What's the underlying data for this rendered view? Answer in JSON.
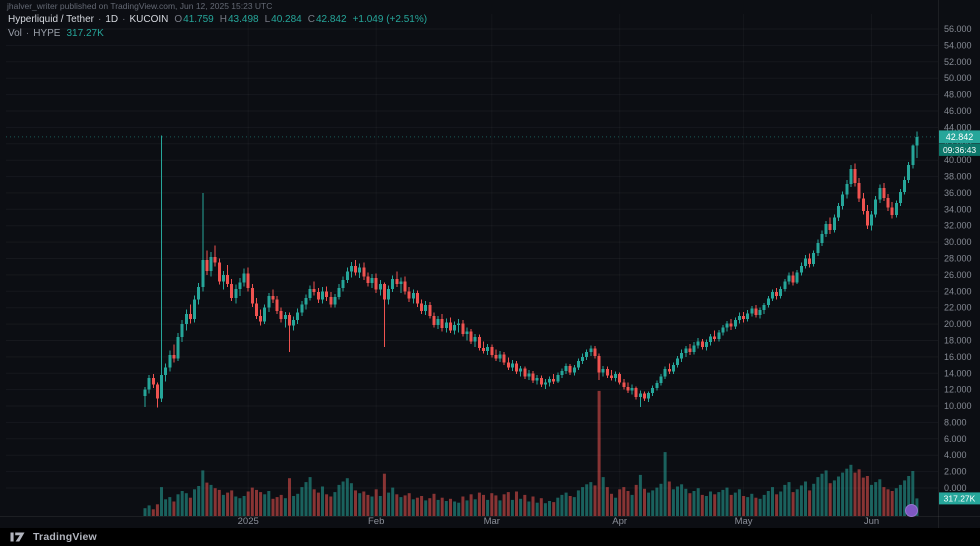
{
  "attribution": "jhalver_writer published on TradingView.com, Jun 12, 2025 15:23 UTC",
  "legend": {
    "row1": {
      "symbol": "Hyperliquid / Tether",
      "sep": "·",
      "interval": "1D",
      "exchange": "KUCOIN",
      "o_label": "O",
      "o_value": "41.759",
      "h_label": "H",
      "h_value": "43.498",
      "l_label": "L",
      "l_value": "40.284",
      "c_label": "C",
      "c_value": "42.842",
      "change": "+1.049 (+2.51%)"
    },
    "row2": {
      "label": "Vol",
      "sep": "·",
      "symbol": "HYPE",
      "value": "317.27K"
    }
  },
  "axis": {
    "price_badge": "42.842",
    "countdown": "09:36:43",
    "volume_badge": "317.27K"
  },
  "footer": {
    "brand": "TradingView"
  },
  "colors": {
    "bg": "#0c0e13",
    "up": "#26a69a",
    "down": "#ef5350",
    "up_volume": "rgba(38,166,154,0.55)",
    "down_volume": "rgba(239,83,80,0.55)",
    "badge_price_bg": "#26a69a",
    "badge_countdown_bg": "#0d776a",
    "badge_volume_bg": "#26a69a",
    "axis_text": "#868b94",
    "time_text": "#8b8f99"
  },
  "chart_data": {
    "type": "candlestick+volume",
    "title": "Hyperliquid / Tether 1D KUCOIN",
    "symbol": "HYPE/USDT",
    "interval": "1D",
    "ylim": [
      0,
      56
    ],
    "ytick_step": 2,
    "ytick_decimals": 3,
    "grid": "faint",
    "legend_position": "top-left",
    "x_months": [
      {
        "label": "2025",
        "i": 25
      },
      {
        "label": "Feb",
        "i": 56
      },
      {
        "label": "Mar",
        "i": 84
      },
      {
        "label": "Apr",
        "i": 115
      },
      {
        "label": "May",
        "i": 145
      },
      {
        "label": "Jun",
        "i": 176
      }
    ],
    "candle_fields": [
      "open",
      "high",
      "low",
      "close",
      "volume_k"
    ],
    "candles": [
      [
        11.2,
        12.3,
        9.9,
        12,
        140
      ],
      [
        12,
        13.8,
        11.5,
        13.4,
        190
      ],
      [
        13.4,
        13.9,
        12.2,
        12.6,
        120
      ],
      [
        12.6,
        12.9,
        9.8,
        10.9,
        210
      ],
      [
        10.9,
        43,
        10.5,
        13.8,
        520
      ],
      [
        13.8,
        15.2,
        13,
        14.7,
        300
      ],
      [
        14.7,
        16.8,
        14.2,
        16.2,
        340
      ],
      [
        16.2,
        17.5,
        15.3,
        15.8,
        260
      ],
      [
        15.8,
        18.9,
        15.5,
        18.4,
        390
      ],
      [
        18.4,
        20.5,
        17.8,
        20,
        450
      ],
      [
        20,
        21.8,
        19.2,
        21.2,
        410
      ],
      [
        21.2,
        22.4,
        20.1,
        20.6,
        330
      ],
      [
        20.6,
        23.5,
        20.2,
        23,
        480
      ],
      [
        23,
        25,
        22.4,
        24.5,
        540
      ],
      [
        24.5,
        36,
        24,
        27.8,
        820
      ],
      [
        27.8,
        29,
        26,
        26.5,
        600
      ],
      [
        26.5,
        28.8,
        25.8,
        28.2,
        560
      ],
      [
        28.2,
        29.6,
        27,
        27.5,
        500
      ],
      [
        27.5,
        28,
        24.8,
        25.2,
        470
      ],
      [
        25.2,
        26.5,
        24.2,
        26,
        380
      ],
      [
        26,
        27.2,
        24.5,
        24.9,
        420
      ],
      [
        24.9,
        25.5,
        22.8,
        23.2,
        460
      ],
      [
        23.2,
        24.8,
        22.5,
        24.3,
        350
      ],
      [
        24.3,
        25.6,
        23.4,
        25.1,
        320
      ],
      [
        25.1,
        26.8,
        24.6,
        26.2,
        360
      ],
      [
        26.2,
        26.9,
        24,
        24.4,
        440
      ],
      [
        24.4,
        24.9,
        22.1,
        22.5,
        510
      ],
      [
        22.5,
        23.2,
        20.6,
        21,
        470
      ],
      [
        21,
        21.8,
        19.8,
        20.3,
        430
      ],
      [
        20.3,
        22.4,
        20,
        22,
        390
      ],
      [
        22,
        23.8,
        21.5,
        23.4,
        450
      ],
      [
        23.4,
        24.2,
        22.6,
        23,
        310
      ],
      [
        23,
        23.4,
        21.2,
        21.6,
        340
      ],
      [
        21.6,
        22,
        20.2,
        20.6,
        380
      ],
      [
        20.6,
        21.5,
        19.6,
        21.1,
        320
      ],
      [
        21.1,
        21.4,
        16.6,
        19.8,
        680
      ],
      [
        19.8,
        20.9,
        19.2,
        20.5,
        360
      ],
      [
        20.5,
        21.9,
        20,
        21.4,
        400
      ],
      [
        21.4,
        22.8,
        21,
        22.4,
        520
      ],
      [
        22.4,
        23.6,
        21.8,
        23.2,
        610
      ],
      [
        23.2,
        24.7,
        22.9,
        24.3,
        700
      ],
      [
        24.3,
        25.2,
        23.5,
        23.9,
        480
      ],
      [
        23.9,
        24.4,
        22.6,
        23,
        420
      ],
      [
        23,
        24.5,
        22.5,
        24,
        530
      ],
      [
        24,
        24.6,
        22.8,
        23.3,
        390
      ],
      [
        23.3,
        23.9,
        22,
        22.4,
        350
      ],
      [
        22.4,
        23.7,
        22,
        23.3,
        430
      ],
      [
        23.3,
        24.9,
        23,
        24.4,
        560
      ],
      [
        24.4,
        25.8,
        24,
        25.4,
        620
      ],
      [
        25.4,
        26.9,
        25,
        26.4,
        680
      ],
      [
        26.4,
        27.6,
        25.7,
        27.1,
        590
      ],
      [
        27.1,
        27.8,
        25.9,
        26.3,
        460
      ],
      [
        26.3,
        27.4,
        25.6,
        26.9,
        410
      ],
      [
        26.9,
        27.5,
        25.4,
        25.8,
        440
      ],
      [
        25.8,
        26.3,
        24.6,
        25,
        380
      ],
      [
        25,
        26.1,
        24.4,
        25.6,
        350
      ],
      [
        25.6,
        26.2,
        23.8,
        24.2,
        480
      ],
      [
        24.2,
        25.4,
        23.5,
        24.9,
        360
      ],
      [
        24.9,
        25.1,
        17.2,
        23,
        760
      ],
      [
        23,
        24.7,
        22.4,
        24.3,
        420
      ],
      [
        24.3,
        25.9,
        23.9,
        25.5,
        510
      ],
      [
        25.5,
        26.4,
        24.5,
        24.9,
        390
      ],
      [
        24.9,
        25.7,
        23.8,
        25.2,
        340
      ],
      [
        25.2,
        25.8,
        23.6,
        24,
        370
      ],
      [
        24,
        24.5,
        22.7,
        23.1,
        410
      ],
      [
        23.1,
        24.2,
        22.5,
        23.8,
        300
      ],
      [
        23.8,
        24.1,
        22.1,
        22.5,
        330
      ],
      [
        22.5,
        23,
        21.2,
        21.6,
        360
      ],
      [
        21.6,
        22.8,
        21.1,
        22.3,
        280
      ],
      [
        22.3,
        22.7,
        20.7,
        21,
        320
      ],
      [
        21,
        21.4,
        19.6,
        19.9,
        400
      ],
      [
        19.9,
        21,
        19.4,
        20.6,
        290
      ],
      [
        20.6,
        21.2,
        19.1,
        19.5,
        330
      ],
      [
        19.5,
        20.7,
        19,
        20.2,
        270
      ],
      [
        20.2,
        20.8,
        18.9,
        19.2,
        310
      ],
      [
        19.2,
        20.3,
        18.7,
        19.9,
        260
      ],
      [
        19.9,
        20.6,
        19,
        20.1,
        240
      ],
      [
        20.1,
        20.5,
        18.5,
        18.8,
        350
      ],
      [
        18.8,
        19.6,
        18,
        19.1,
        280
      ],
      [
        19.1,
        19.4,
        17.6,
        17.9,
        390
      ],
      [
        17.9,
        18.8,
        17.2,
        18.4,
        300
      ],
      [
        18.4,
        18.7,
        16.8,
        17.1,
        420
      ],
      [
        17.1,
        17.9,
        16.4,
        16.7,
        380
      ],
      [
        16.7,
        17.6,
        16.2,
        17.2,
        290
      ],
      [
        17.2,
        17.5,
        15.9,
        16.2,
        410
      ],
      [
        16.2,
        16.9,
        15.5,
        15.8,
        370
      ],
      [
        15.8,
        16.7,
        15.4,
        16.3,
        280
      ],
      [
        16.3,
        16.6,
        15,
        15.3,
        390
      ],
      [
        15.3,
        15.9,
        14.4,
        14.7,
        430
      ],
      [
        14.7,
        15.6,
        14.3,
        15.2,
        290
      ],
      [
        15.2,
        15.5,
        13.9,
        14.2,
        440
      ],
      [
        14.2,
        14.9,
        13.6,
        14.6,
        310
      ],
      [
        14.6,
        14.8,
        13.3,
        13.6,
        380
      ],
      [
        13.6,
        14.4,
        13.2,
        14,
        260
      ],
      [
        14,
        14.3,
        12.8,
        13.1,
        350
      ],
      [
        13.1,
        13.8,
        12.6,
        13.4,
        240
      ],
      [
        13.4,
        13.7,
        12.3,
        12.6,
        320
      ],
      [
        12.6,
        13.3,
        12.1,
        12.9,
        230
      ],
      [
        12.9,
        13.6,
        12.4,
        13.3,
        270
      ],
      [
        13.3,
        13.9,
        12.7,
        13,
        250
      ],
      [
        13,
        14.1,
        12.8,
        13.8,
        330
      ],
      [
        13.8,
        14.6,
        13.4,
        14.3,
        380
      ],
      [
        14.3,
        15.2,
        13.9,
        14.9,
        420
      ],
      [
        14.9,
        15.1,
        13.8,
        14.1,
        360
      ],
      [
        14.1,
        15,
        13.7,
        14.7,
        340
      ],
      [
        14.7,
        15.8,
        14.4,
        15.5,
        460
      ],
      [
        15.5,
        16.4,
        15.1,
        16,
        520
      ],
      [
        16,
        16.9,
        15.6,
        16.6,
        570
      ],
      [
        16.6,
        17.4,
        16.1,
        17,
        610
      ],
      [
        17,
        17.3,
        15.8,
        16.1,
        550
      ],
      [
        16.1,
        16.4,
        13.2,
        14.1,
        2250
      ],
      [
        14.1,
        14.9,
        13.6,
        14.5,
        700
      ],
      [
        14.5,
        14.8,
        13.4,
        13.7,
        520
      ],
      [
        13.7,
        14.4,
        13.1,
        13.4,
        400
      ],
      [
        13.4,
        14.2,
        13,
        13.9,
        330
      ],
      [
        13.9,
        14.1,
        12.6,
        12.9,
        480
      ],
      [
        12.9,
        13.3,
        12,
        12.3,
        520
      ],
      [
        12.3,
        12.9,
        11.6,
        11.9,
        450
      ],
      [
        11.9,
        12.6,
        11.4,
        12.2,
        380
      ],
      [
        12.2,
        12.4,
        10.8,
        11.1,
        560
      ],
      [
        11.1,
        11.9,
        9.9,
        11.5,
        740
      ],
      [
        11.5,
        11.8,
        10.6,
        10.9,
        490
      ],
      [
        10.9,
        11.8,
        10.5,
        11.6,
        420
      ],
      [
        11.6,
        12.5,
        11.2,
        12.2,
        460
      ],
      [
        12.2,
        13.1,
        11.9,
        12.8,
        510
      ],
      [
        12.8,
        13.9,
        12.5,
        13.6,
        580
      ],
      [
        13.6,
        14.8,
        13.3,
        14.5,
        1150
      ],
      [
        14.5,
        15.2,
        13.9,
        14.2,
        620
      ],
      [
        14.2,
        15.3,
        13.9,
        15,
        480
      ],
      [
        15,
        16.1,
        14.7,
        15.8,
        530
      ],
      [
        15.8,
        16.9,
        15.4,
        16.5,
        570
      ],
      [
        16.5,
        17.3,
        16,
        17,
        490
      ],
      [
        17,
        17.6,
        16.2,
        16.6,
        410
      ],
      [
        16.6,
        17.8,
        16.3,
        17.4,
        450
      ],
      [
        17.4,
        18.3,
        17,
        17.9,
        500
      ],
      [
        17.9,
        18.2,
        16.9,
        17.2,
        380
      ],
      [
        17.2,
        18.1,
        16.8,
        17.8,
        360
      ],
      [
        17.8,
        18.8,
        17.4,
        18.5,
        440
      ],
      [
        18.5,
        19.2,
        17.9,
        18.2,
        390
      ],
      [
        18.2,
        19.3,
        17.9,
        19,
        430
      ],
      [
        19,
        19.9,
        18.6,
        19.6,
        470
      ],
      [
        19.6,
        20.4,
        19.1,
        20.1,
        510
      ],
      [
        20.1,
        20.6,
        19.3,
        19.7,
        380
      ],
      [
        19.7,
        20.8,
        19.4,
        20.5,
        420
      ],
      [
        20.5,
        21.4,
        20.1,
        21,
        480
      ],
      [
        21,
        21.5,
        20.2,
        20.6,
        360
      ],
      [
        20.6,
        21.7,
        20.3,
        21.3,
        340
      ],
      [
        21.3,
        22.2,
        20.9,
        21.9,
        400
      ],
      [
        21.9,
        22.3,
        20.8,
        21.1,
        330
      ],
      [
        21.1,
        22,
        20.7,
        21.7,
        310
      ],
      [
        21.7,
        22.6,
        21.2,
        22.3,
        380
      ],
      [
        22.3,
        23.4,
        22,
        23.1,
        450
      ],
      [
        23.1,
        24.2,
        22.8,
        23.9,
        520
      ],
      [
        23.9,
        24.4,
        23,
        23.4,
        390
      ],
      [
        23.4,
        24.6,
        23.1,
        24.3,
        440
      ],
      [
        24.3,
        25.5,
        24,
        25.2,
        560
      ],
      [
        25.2,
        26.3,
        24.8,
        25.9,
        610
      ],
      [
        25.9,
        26.4,
        24.7,
        25.1,
        430
      ],
      [
        25.1,
        26.6,
        24.9,
        26.3,
        480
      ],
      [
        26.3,
        27.5,
        25.9,
        27.1,
        550
      ],
      [
        27.1,
        28.4,
        26.8,
        28,
        620
      ],
      [
        28,
        28.6,
        26.9,
        27.3,
        460
      ],
      [
        27.3,
        29,
        27,
        28.7,
        580
      ],
      [
        28.7,
        30.3,
        28.3,
        29.9,
        700
      ],
      [
        29.9,
        31.4,
        29.5,
        31,
        760
      ],
      [
        31,
        32.6,
        30.6,
        32.2,
        820
      ],
      [
        32.2,
        33,
        31,
        31.5,
        590
      ],
      [
        31.5,
        33.4,
        31.2,
        33,
        640
      ],
      [
        33,
        34.8,
        32.6,
        34.4,
        710
      ],
      [
        34.4,
        36.2,
        34,
        35.8,
        780
      ],
      [
        35.8,
        37.6,
        35.3,
        37.1,
        850
      ],
      [
        37.1,
        39.4,
        36.7,
        38.9,
        920
      ],
      [
        38.9,
        39.6,
        36.8,
        37.2,
        780
      ],
      [
        37.2,
        37.8,
        34.9,
        35.3,
        840
      ],
      [
        35.3,
        36,
        33.4,
        33.8,
        690
      ],
      [
        33.8,
        34.5,
        31.6,
        32,
        720
      ],
      [
        32,
        33.8,
        31.4,
        33.4,
        560
      ],
      [
        33.4,
        35.6,
        33,
        35.2,
        610
      ],
      [
        35.2,
        37,
        34.8,
        36.6,
        660
      ],
      [
        36.6,
        37.2,
        35,
        35.4,
        520
      ],
      [
        35.4,
        35.9,
        33.8,
        34.2,
        480
      ],
      [
        34.2,
        34.9,
        32.9,
        33.3,
        450
      ],
      [
        33.3,
        35.1,
        33,
        34.8,
        500
      ],
      [
        34.8,
        36.5,
        34.4,
        36.1,
        560
      ],
      [
        36.1,
        38,
        35.8,
        37.6,
        640
      ],
      [
        37.6,
        39.8,
        37.2,
        39.4,
        720
      ],
      [
        39.4,
        41.9,
        39,
        41.8,
        810
      ],
      [
        41.759,
        43.498,
        40.284,
        42.842,
        317
      ]
    ],
    "last_close": 42.842,
    "last_volume_k": 317.27
  }
}
